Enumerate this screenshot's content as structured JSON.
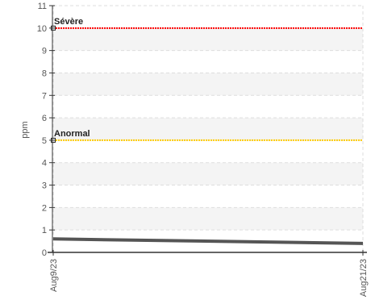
{
  "chart_data": {
    "type": "line",
    "ylabel": "ppm",
    "xlabel": "",
    "title": "",
    "ylim": [
      0,
      11
    ],
    "xlim": [
      "Aug9/23",
      "Aug21/23"
    ],
    "y_ticks": [
      "0",
      "1",
      "2",
      "3",
      "4",
      "5",
      "6",
      "7",
      "8",
      "9",
      "10",
      "11"
    ],
    "x_ticks": [
      "Aug9/23",
      "Aug21/23"
    ],
    "grid": true,
    "series": [
      {
        "color": "#555555",
        "points": [
          {
            "x": "Aug9/23",
            "y": 0.6
          },
          {
            "x": "Aug21/23",
            "y": 0.4
          }
        ]
      }
    ],
    "thresholds": [
      {
        "label": "Sévère",
        "value": 10,
        "color": "#ff0000"
      },
      {
        "label": "Anormal",
        "value": 5,
        "color": "#ffcc00"
      }
    ]
  }
}
